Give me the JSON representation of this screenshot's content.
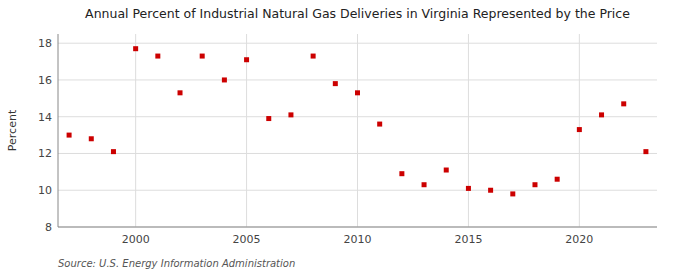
{
  "chart_data": {
    "type": "scatter",
    "title": "Annual Percent of Industrial Natural Gas Deliveries in Virginia Represented by the Price",
    "ylabel": "Percent",
    "source": "Source: U.S. Energy Information Administration",
    "color": "#cc0000",
    "marker": "square",
    "grid": true,
    "xlim": [
      1996.5,
      2023.5
    ],
    "ylim": [
      8,
      18.5
    ],
    "xticks": [
      2000,
      2005,
      2010,
      2015,
      2020
    ],
    "yticks": [
      8,
      10,
      12,
      14,
      16,
      18
    ],
    "x": [
      1997,
      1998,
      1999,
      2000,
      2001,
      2002,
      2003,
      2004,
      2005,
      2006,
      2007,
      2008,
      2009,
      2010,
      2011,
      2012,
      2013,
      2014,
      2015,
      2016,
      2017,
      2018,
      2019,
      2020,
      2021,
      2022,
      2023
    ],
    "values": [
      13.0,
      12.8,
      12.1,
      17.7,
      17.3,
      15.3,
      17.3,
      16.0,
      17.1,
      13.9,
      14.1,
      17.3,
      15.8,
      15.3,
      13.6,
      10.9,
      10.3,
      11.1,
      10.1,
      10.0,
      9.8,
      10.3,
      10.6,
      13.3,
      14.1,
      14.7,
      12.1
    ]
  }
}
